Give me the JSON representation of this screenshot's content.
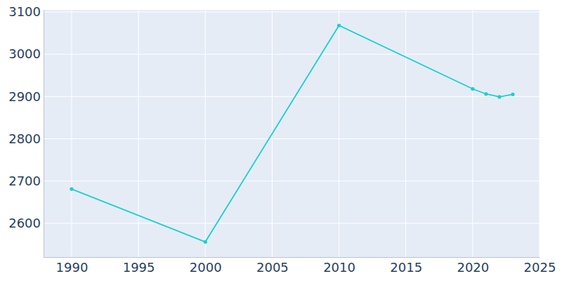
{
  "chart_data": {
    "type": "line",
    "x": [
      1990,
      2000,
      2010,
      2020,
      2021,
      2022,
      2023
    ],
    "values": [
      2681,
      2556,
      3068,
      2918,
      2906,
      2899,
      2905
    ],
    "color": "#1ccfd0",
    "xlim": [
      1987.9,
      2025
    ],
    "ylim": [
      2520,
      3105
    ],
    "xticks": [
      1990,
      1995,
      2000,
      2005,
      2010,
      2015,
      2020,
      2025
    ],
    "yticks": [
      2600,
      2700,
      2800,
      2900,
      3000,
      3100
    ],
    "grid": true,
    "marker": "circle"
  }
}
